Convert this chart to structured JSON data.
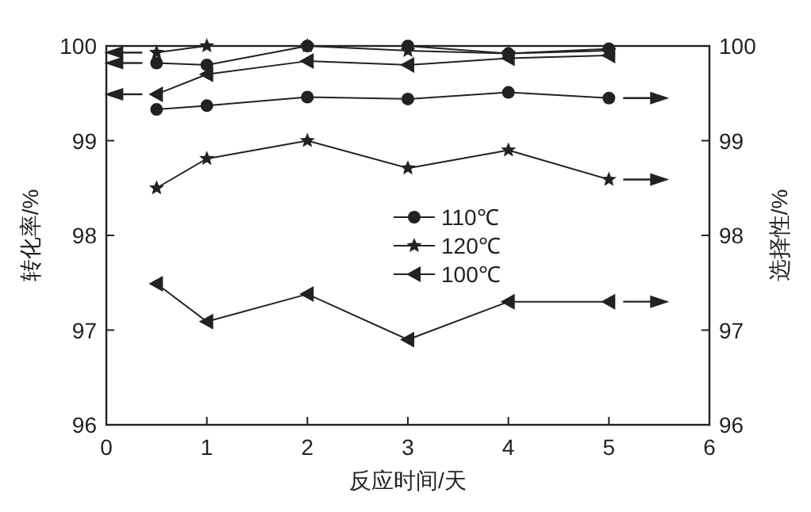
{
  "chart_data": {
    "type": "line",
    "xlabel": "反应时间/天",
    "ylabel": "转化率/%",
    "y2label": "选择性/%",
    "x": [
      0.5,
      1,
      2,
      3,
      4,
      5
    ],
    "series": [
      {
        "name": "110℃",
        "color": "#222222",
        "marker": "circle",
        "values": [
          99.82,
          99.8,
          100,
          100,
          99.92,
          99.97
        ]
      },
      {
        "name": "120℃",
        "color": "#222222",
        "marker": "star",
        "values": [
          99.93,
          100,
          100,
          99.95,
          99.92,
          99.95
        ]
      },
      {
        "name": "100℃",
        "color": "#222222",
        "marker": "triangle",
        "values": [
          99.49,
          99.7,
          99.84,
          99.8,
          99.87,
          99.9
        ]
      },
      {
        "color": "#222222",
        "marker": "circle",
        "axis": "y2",
        "values": [
          99.33,
          99.37,
          99.46,
          99.44,
          99.51,
          99.45
        ]
      },
      {
        "color": "#222222",
        "marker": "star",
        "axis": "y2",
        "values": [
          98.5,
          98.81,
          99.0,
          98.71,
          98.9,
          98.59
        ]
      },
      {
        "color": "#222222",
        "marker": "triangle",
        "axis": "y2",
        "values": [
          97.49,
          97.09,
          97.38,
          96.9,
          97.3,
          97.3
        ]
      }
    ],
    "xlim": [
      0,
      6
    ],
    "xticks": [
      0,
      1,
      2,
      3,
      4,
      5,
      6
    ],
    "ylim": [
      96,
      100
    ],
    "yticks": [
      96,
      97,
      98,
      99,
      100
    ],
    "y2lim": [
      96,
      100
    ],
    "y2ticks": [
      96,
      97,
      98,
      99,
      100
    ],
    "grid": false,
    "legend": "center",
    "line_style": "solid"
  }
}
